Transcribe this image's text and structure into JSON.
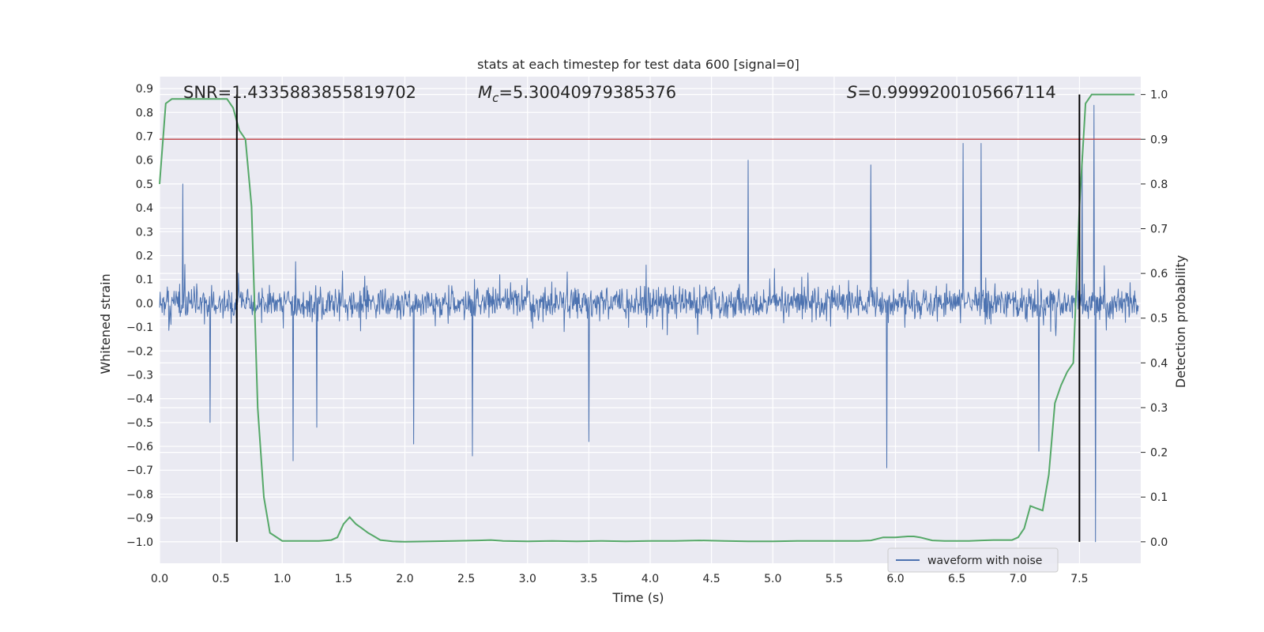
{
  "chart_data": {
    "type": "line",
    "title": "stats at each timestep for test data 600 [signal=0]",
    "xlabel": "Time (s)",
    "ylabel": "Whitened strain",
    "y2label": "Detection probability",
    "xlim": [
      0.0,
      8.0
    ],
    "ylim": [
      -1.09,
      0.95
    ],
    "y2lim": [
      -0.048,
      1.04
    ],
    "x_ticks": [
      "0.0",
      "0.5",
      "1.0",
      "1.5",
      "2.0",
      "2.5",
      "3.0",
      "3.5",
      "4.0",
      "4.5",
      "5.0",
      "5.5",
      "6.0",
      "6.5",
      "7.0",
      "7.5"
    ],
    "y_ticks": [
      "0.9",
      "0.8",
      "0.7",
      "0.6",
      "0.5",
      "0.4",
      "0.3",
      "0.2",
      "0.1",
      "0.0",
      "-0.1",
      "-0.2",
      "-0.3",
      "-0.4",
      "-0.5",
      "-0.6",
      "-0.7",
      "-0.8",
      "-0.9",
      "-1.0"
    ],
    "y2_ticks": [
      "1.0",
      "0.9",
      "0.8",
      "0.7",
      "0.6",
      "0.5",
      "0.4",
      "0.3",
      "0.2",
      "0.1",
      "0.0"
    ],
    "annotations": {
      "snr": "SNR=1.4335883855819702",
      "mc_symbol": "M",
      "mc_sub": "c",
      "mc_value": "=5.30040979385376",
      "s_symbol": "S",
      "s_value": "=0.9999200105667114"
    },
    "legend": {
      "label": "waveform with noise",
      "position": "lower-right"
    },
    "series": [
      {
        "name": "waveform with noise",
        "axis": "left",
        "color": "#4c72b0",
        "style": "noise strain, mostly within ±0.3",
        "peaks": [
          {
            "x": 0.19,
            "y": 0.5
          },
          {
            "x": 0.41,
            "y": -0.5
          },
          {
            "x": 1.09,
            "y": -0.66
          },
          {
            "x": 1.28,
            "y": -0.52
          },
          {
            "x": 2.07,
            "y": -0.59
          },
          {
            "x": 2.55,
            "y": -0.64
          },
          {
            "x": 3.5,
            "y": -0.58
          },
          {
            "x": 4.8,
            "y": 0.6
          },
          {
            "x": 5.8,
            "y": 0.58
          },
          {
            "x": 5.93,
            "y": -0.69
          },
          {
            "x": 6.55,
            "y": 0.67
          },
          {
            "x": 6.7,
            "y": 0.67
          },
          {
            "x": 7.17,
            "y": -0.62
          },
          {
            "x": 7.52,
            "y": 0.62
          },
          {
            "x": 7.62,
            "y": 0.83
          },
          {
            "x": 7.63,
            "y": -1.0
          }
        ]
      },
      {
        "name": "Detection probability",
        "axis": "right",
        "color": "#55a868",
        "x": [
          0.0,
          0.05,
          0.1,
          0.15,
          0.2,
          0.25,
          0.3,
          0.35,
          0.4,
          0.45,
          0.5,
          0.55,
          0.6,
          0.65,
          0.7,
          0.75,
          0.8,
          0.85,
          0.9,
          1.0,
          1.1,
          1.2,
          1.3,
          1.36,
          1.4,
          1.45,
          1.5,
          1.55,
          1.6,
          1.65,
          1.7,
          1.75,
          1.8,
          1.9,
          2.0,
          2.2,
          2.4,
          2.6,
          2.7,
          2.8,
          3.0,
          3.2,
          3.4,
          3.6,
          3.8,
          4.0,
          4.2,
          4.4,
          4.6,
          4.8,
          5.0,
          5.2,
          5.4,
          5.6,
          5.7,
          5.8,
          5.9,
          6.0,
          6.1,
          6.15,
          6.2,
          6.3,
          6.4,
          6.5,
          6.6,
          6.7,
          6.8,
          6.9,
          6.95,
          7.0,
          7.05,
          7.1,
          7.15,
          7.2,
          7.25,
          7.3,
          7.35,
          7.4,
          7.45,
          7.5,
          7.55,
          7.6,
          7.65,
          7.7,
          7.8,
          7.9,
          7.95
        ],
        "y": [
          0.8,
          0.98,
          0.99,
          0.99,
          0.99,
          0.99,
          0.99,
          0.99,
          0.99,
          0.99,
          0.99,
          0.99,
          0.97,
          0.92,
          0.9,
          0.75,
          0.3,
          0.1,
          0.02,
          0.002,
          0.002,
          0.002,
          0.002,
          0.003,
          0.004,
          0.01,
          0.04,
          0.055,
          0.04,
          0.03,
          0.02,
          0.012,
          0.004,
          0.001,
          0.0,
          0.001,
          0.002,
          0.003,
          0.004,
          0.002,
          0.001,
          0.002,
          0.001,
          0.002,
          0.001,
          0.002,
          0.002,
          0.003,
          0.002,
          0.001,
          0.001,
          0.002,
          0.002,
          0.002,
          0.002,
          0.003,
          0.01,
          0.01,
          0.012,
          0.012,
          0.01,
          0.003,
          0.002,
          0.002,
          0.002,
          0.003,
          0.004,
          0.004,
          0.004,
          0.01,
          0.03,
          0.08,
          0.075,
          0.07,
          0.15,
          0.31,
          0.35,
          0.38,
          0.4,
          0.75,
          0.98,
          1.0,
          1.0,
          1.0,
          1.0,
          1.0,
          1.0
        ]
      }
    ],
    "reference_lines": {
      "threshold_y2": 0.9,
      "vertical_x": [
        0.63,
        7.5
      ],
      "vertical_span_y2": [
        0.0,
        1.0
      ]
    }
  }
}
